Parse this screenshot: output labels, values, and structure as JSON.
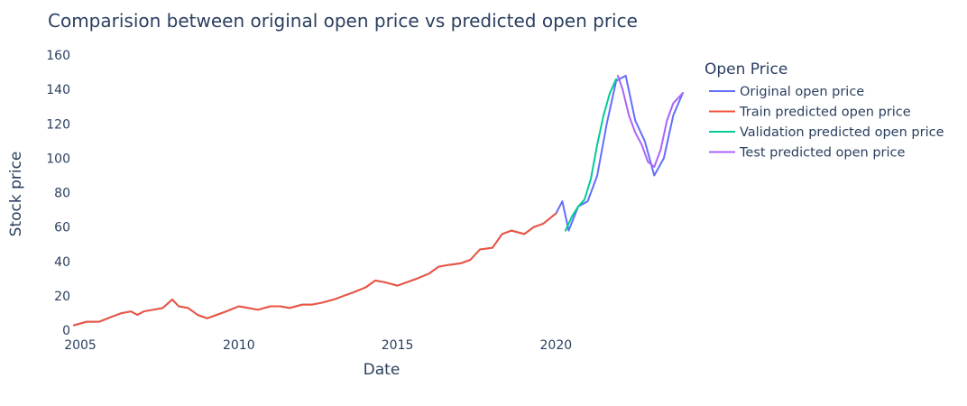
{
  "chart_data": {
    "type": "line",
    "title": "Comparision between original open price vs predicted open price",
    "xlabel": "Date",
    "ylabel": "Stock price",
    "xlim": [
      2004.8,
      2024.2
    ],
    "ylim": [
      -2,
      160
    ],
    "grid": false,
    "x_ticks": [
      {
        "value": 2005,
        "label": "2005"
      },
      {
        "value": 2010,
        "label": "2010"
      },
      {
        "value": 2015,
        "label": "2015"
      },
      {
        "value": 2020,
        "label": "2020"
      }
    ],
    "y_ticks": [
      {
        "value": 0,
        "label": "0"
      },
      {
        "value": 20,
        "label": "20"
      },
      {
        "value": 40,
        "label": "40"
      },
      {
        "value": 60,
        "label": "60"
      },
      {
        "value": 80,
        "label": "80"
      },
      {
        "value": 100,
        "label": "100"
      },
      {
        "value": 120,
        "label": "120"
      },
      {
        "value": 140,
        "label": "140"
      },
      {
        "value": 160,
        "label": "160"
      }
    ],
    "legend": {
      "title": "Open Price",
      "placement": "right"
    },
    "series": [
      {
        "name": "Original open price",
        "color": "#636efa",
        "x": [
          2004.8,
          2005.2,
          2005.6,
          2006.0,
          2006.3,
          2006.6,
          2006.8,
          2007.0,
          2007.3,
          2007.6,
          2007.9,
          2008.1,
          2008.4,
          2008.7,
          2009.0,
          2009.3,
          2009.6,
          2010.0,
          2010.3,
          2010.6,
          2011.0,
          2011.3,
          2011.6,
          2012.0,
          2012.3,
          2012.6,
          2013.0,
          2013.3,
          2013.6,
          2014.0,
          2014.3,
          2014.6,
          2015.0,
          2015.3,
          2015.6,
          2016.0,
          2016.3,
          2016.6,
          2017.0,
          2017.3,
          2017.6,
          2018.0,
          2018.3,
          2018.6,
          2019.0,
          2019.3,
          2019.6,
          2020.0,
          2020.2,
          2020.4,
          2020.7,
          2021.0,
          2021.3,
          2021.6,
          2021.9,
          2022.2,
          2022.5,
          2022.8,
          2023.1,
          2023.4,
          2023.7,
          2024.0
        ],
        "y": [
          3,
          5,
          5,
          8,
          10,
          11,
          9,
          11,
          12,
          13,
          18,
          14,
          13,
          9,
          7,
          9,
          11,
          14,
          13,
          12,
          14,
          14,
          13,
          15,
          15,
          16,
          18,
          20,
          22,
          25,
          29,
          28,
          26,
          28,
          30,
          33,
          37,
          38,
          39,
          41,
          47,
          48,
          56,
          58,
          56,
          60,
          62,
          68,
          75,
          58,
          72,
          75,
          90,
          120,
          145,
          148,
          122,
          110,
          90,
          100,
          125,
          138
        ]
      },
      {
        "name": "Train predicted open price",
        "color": "#ef553b",
        "x": [
          2004.8,
          2005.2,
          2005.6,
          2006.0,
          2006.3,
          2006.6,
          2006.8,
          2007.0,
          2007.3,
          2007.6,
          2007.9,
          2008.1,
          2008.4,
          2008.7,
          2009.0,
          2009.3,
          2009.6,
          2010.0,
          2010.3,
          2010.6,
          2011.0,
          2011.3,
          2011.6,
          2012.0,
          2012.3,
          2012.6,
          2013.0,
          2013.3,
          2013.6,
          2014.0,
          2014.3,
          2014.6,
          2015.0,
          2015.3,
          2015.6,
          2016.0,
          2016.3,
          2016.6,
          2017.0,
          2017.3,
          2017.6,
          2018.0,
          2018.3,
          2018.6,
          2019.0,
          2019.3,
          2019.6,
          2020.0
        ],
        "y": [
          3,
          5,
          5,
          8,
          10,
          11,
          9,
          11,
          12,
          13,
          18,
          14,
          13,
          9,
          7,
          9,
          11,
          14,
          13,
          12,
          14,
          14,
          13,
          15,
          15,
          16,
          18,
          20,
          22,
          25,
          29,
          28,
          26,
          28,
          30,
          33,
          37,
          38,
          39,
          41,
          47,
          48,
          56,
          58,
          56,
          60,
          62,
          68
        ]
      },
      {
        "name": "Validation predicted open price",
        "color": "#00cc96",
        "x": [
          2020.3,
          2020.5,
          2020.7,
          2020.9,
          2021.1,
          2021.3,
          2021.5,
          2021.7,
          2021.9
        ],
        "y": [
          58,
          66,
          72,
          76,
          88,
          108,
          125,
          138,
          146
        ]
      },
      {
        "name": "Test predicted open price",
        "color": "#ab63fa",
        "x": [
          2021.95,
          2022.1,
          2022.3,
          2022.5,
          2022.7,
          2022.9,
          2023.1,
          2023.3,
          2023.5,
          2023.7,
          2023.9,
          2024.0
        ],
        "y": [
          148,
          140,
          125,
          115,
          108,
          98,
          95,
          105,
          122,
          132,
          136,
          138
        ]
      }
    ]
  }
}
